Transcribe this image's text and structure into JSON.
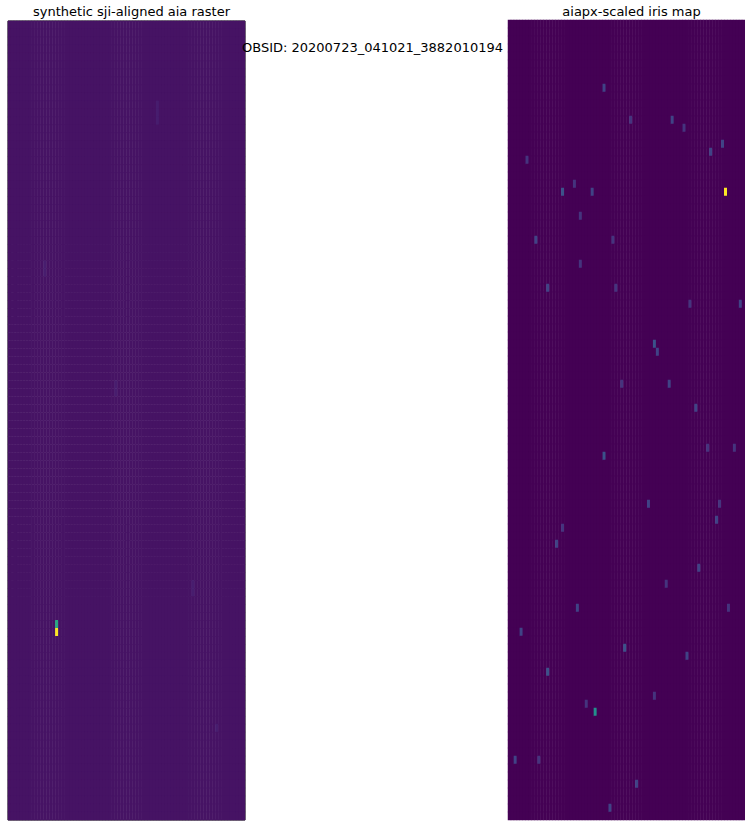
{
  "title": "OBSID: 20200723_041021_3882010194",
  "chart_data": [
    {
      "type": "heatmap",
      "title": "synthetic sji-aligned aia raster",
      "columns": 80,
      "rows": 100,
      "default_value": 0.05,
      "color_range": [
        0,
        1
      ],
      "tick_labels": false,
      "cells": [
        [
          16,
          75,
          0.6
        ],
        [
          16,
          76,
          1.0
        ],
        [
          50,
          10,
          0.08
        ],
        [
          50,
          11,
          0.08
        ],
        [
          50,
          12,
          0.08
        ],
        [
          36,
          45,
          0.08
        ],
        [
          36,
          46,
          0.08
        ],
        [
          62,
          70,
          0.08
        ],
        [
          62,
          71,
          0.08
        ],
        [
          12,
          30,
          0.08
        ],
        [
          12,
          31,
          0.08
        ],
        [
          70,
          88,
          0.08
        ]
      ]
    },
    {
      "type": "heatmap",
      "title": "aiapx-scaled iris map",
      "columns": 80,
      "rows": 100,
      "default_value": 0,
      "color_range": [
        0,
        1
      ],
      "tick_labels": false,
      "cells": [
        [
          73,
          21,
          1.0
        ],
        [
          29,
          86,
          0.5
        ],
        [
          32,
          8,
          0.2
        ],
        [
          41,
          12,
          0.15
        ],
        [
          55,
          12,
          0.2
        ],
        [
          59,
          13,
          0.15
        ],
        [
          68,
          16,
          0.2
        ],
        [
          18,
          21,
          0.25
        ],
        [
          28,
          21,
          0.2
        ],
        [
          24,
          24,
          0.15
        ],
        [
          72,
          15,
          0.2
        ],
        [
          6,
          17,
          0.15
        ],
        [
          9,
          27,
          0.2
        ],
        [
          24,
          30,
          0.15
        ],
        [
          13,
          33,
          0.2
        ],
        [
          36,
          33,
          0.15
        ],
        [
          49,
          40,
          0.25
        ],
        [
          50,
          41,
          0.2
        ],
        [
          38,
          45,
          0.15
        ],
        [
          63,
          48,
          0.2
        ],
        [
          67,
          53,
          0.15
        ],
        [
          32,
          54,
          0.25
        ],
        [
          16,
          65,
          0.2
        ],
        [
          18,
          63,
          0.15
        ],
        [
          23,
          73,
          0.2
        ],
        [
          39,
          78,
          0.25
        ],
        [
          60,
          79,
          0.2
        ],
        [
          13,
          81,
          0.25
        ],
        [
          49,
          84,
          0.15
        ],
        [
          70,
          62,
          0.2
        ],
        [
          71,
          60,
          0.15
        ],
        [
          34,
          98,
          0.2
        ],
        [
          10,
          92,
          0.15
        ],
        [
          2,
          92,
          0.2
        ],
        [
          22,
          20,
          0.15
        ],
        [
          78,
          35,
          0.2
        ],
        [
          61,
          35,
          0.15
        ],
        [
          35,
          27,
          0.15
        ],
        [
          54,
          45,
          0.2
        ],
        [
          76,
          53,
          0.15
        ],
        [
          47,
          60,
          0.2
        ],
        [
          74,
          73,
          0.15
        ],
        [
          43,
          95,
          0.2
        ],
        [
          26,
          85,
          0.15
        ],
        [
          4,
          76,
          0.2
        ],
        [
          53,
          70,
          0.15
        ],
        [
          64,
          68,
          0.2
        ]
      ]
    }
  ]
}
